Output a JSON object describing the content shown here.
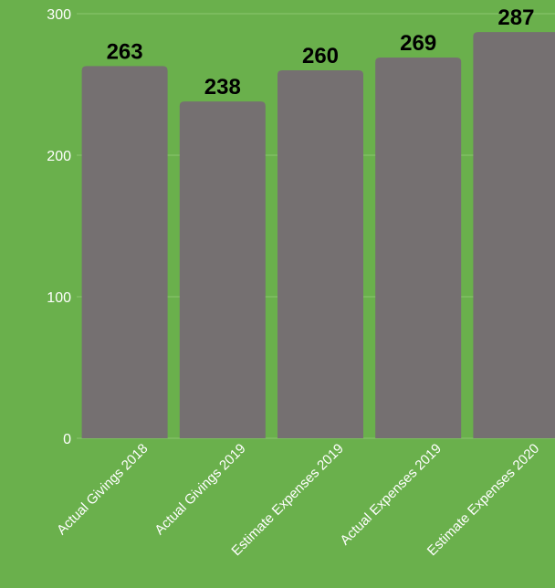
{
  "chart_data": {
    "type": "bar",
    "categories": [
      "Actual Givings 2018",
      "Actual Givings 2019",
      "Estimate Expenses 2019",
      "Actual Expenses 2019",
      "Estimate Expenses 2020"
    ],
    "values": [
      263,
      238,
      260,
      269,
      287
    ],
    "data_labels": [
      "263",
      "238",
      "260",
      "269",
      "287"
    ],
    "y_ticks": [
      0,
      100,
      200,
      300
    ],
    "y_tick_labels": [
      "0",
      "100",
      "200",
      "300"
    ],
    "ylim": [
      0,
      300
    ],
    "grid": true,
    "legend": "none",
    "colors": {
      "background": "#6ab04c",
      "bar": "#757071",
      "grid": "#8cc66f",
      "axis_text": "#ffffff",
      "data_label": "#000000"
    }
  }
}
